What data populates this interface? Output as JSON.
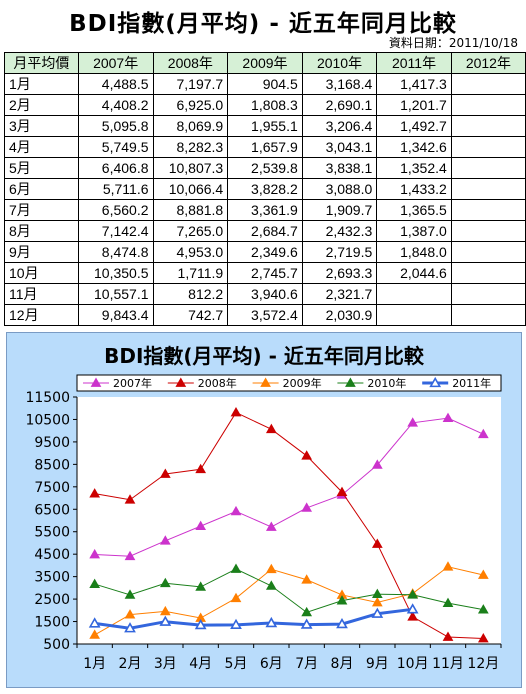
{
  "page": {
    "title": "BDI指數(月平均) - 近五年同月比較",
    "date": "資料日期：2011/10/18"
  },
  "table": {
    "header": [
      "月平均價",
      "2007年",
      "2008年",
      "2009年",
      "2010年",
      "2011年",
      "2012年"
    ],
    "rows": [
      [
        "1月",
        "4,488.5",
        "7,197.7",
        "904.5",
        "3,168.4",
        "1,417.3",
        ""
      ],
      [
        "2月",
        "4,408.2",
        "6,925.0",
        "1,808.3",
        "2,690.1",
        "1,201.7",
        ""
      ],
      [
        "3月",
        "5,095.8",
        "8,069.9",
        "1,955.1",
        "3,206.4",
        "1,492.7",
        ""
      ],
      [
        "4月",
        "5,749.5",
        "8,282.3",
        "1,657.9",
        "3,043.1",
        "1,342.6",
        ""
      ],
      [
        "5月",
        "6,406.8",
        "10,807.3",
        "2,539.8",
        "3,838.1",
        "1,352.4",
        ""
      ],
      [
        "6月",
        "5,711.6",
        "10,066.4",
        "3,828.2",
        "3,088.0",
        "1,433.2",
        ""
      ],
      [
        "7月",
        "6,560.2",
        "8,881.8",
        "3,361.9",
        "1,909.7",
        "1,365.5",
        ""
      ],
      [
        "8月",
        "7,142.4",
        "7,265.0",
        "2,684.7",
        "2,432.3",
        "1,387.0",
        ""
      ],
      [
        "9月",
        "8,474.8",
        "4,953.0",
        "2,349.6",
        "2,719.5",
        "1,848.0",
        ""
      ],
      [
        "10月",
        "10,350.5",
        "1,711.9",
        "2,745.7",
        "2,693.3",
        "2,044.6",
        ""
      ],
      [
        "11月",
        "10,557.1",
        "812.2",
        "3,940.6",
        "2,321.7",
        "",
        ""
      ],
      [
        "12月",
        "9,843.4",
        "742.7",
        "3,572.4",
        "2,030.9",
        "",
        ""
      ]
    ]
  },
  "chart_data": {
    "type": "line",
    "title": "BDI指數(月平均) - 近五年同月比較",
    "categories": [
      "1月",
      "2月",
      "3月",
      "4月",
      "5月",
      "6月",
      "7月",
      "8月",
      "9月",
      "10月",
      "11月",
      "12月"
    ],
    "ylim": [
      500,
      11500
    ],
    "yticks": [
      500,
      1500,
      2500,
      3500,
      4500,
      5500,
      6500,
      7500,
      8500,
      9500,
      10500,
      11500
    ],
    "grid": false,
    "legend": "top",
    "series": [
      {
        "name": "2007年",
        "color": "#cc33cc",
        "marker": "triangle-filled",
        "values": [
          4488.5,
          4408.2,
          5095.8,
          5749.5,
          6406.8,
          5711.6,
          6560.2,
          7142.4,
          8474.8,
          10350.5,
          10557.1,
          9843.4
        ]
      },
      {
        "name": "2008年",
        "color": "#cc0000",
        "marker": "triangle-filled",
        "values": [
          7197.7,
          6925.0,
          8069.9,
          8282.3,
          10807.3,
          10066.4,
          8881.8,
          7265.0,
          4953.0,
          1711.9,
          812.2,
          742.7
        ]
      },
      {
        "name": "2009年",
        "color": "#ff7f00",
        "marker": "triangle-filled",
        "values": [
          904.5,
          1808.3,
          1955.1,
          1657.9,
          2539.8,
          3828.2,
          3361.9,
          2684.7,
          2349.6,
          2745.7,
          3940.6,
          3572.4
        ]
      },
      {
        "name": "2010年",
        "color": "#1a7f1a",
        "marker": "triangle-filled",
        "values": [
          3168.4,
          2690.1,
          3206.4,
          3043.1,
          3838.1,
          3088.0,
          1909.7,
          2432.3,
          2719.5,
          2693.3,
          2321.7,
          2030.9
        ]
      },
      {
        "name": "2011年",
        "color": "#3366dd",
        "marker": "triangle-open",
        "values": [
          1417.3,
          1201.7,
          1492.7,
          1342.6,
          1352.4,
          1433.2,
          1365.5,
          1387.0,
          1848.0,
          2044.6,
          null,
          null
        ]
      }
    ]
  }
}
